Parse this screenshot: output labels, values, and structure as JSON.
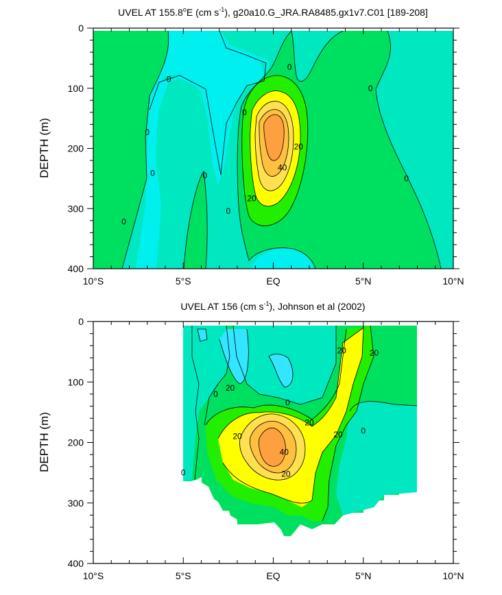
{
  "colors": {
    "fill_neg_strong": "#33e6ff",
    "fill_neg": "#00f0f0",
    "fill_zero": "#00e8c0",
    "fill_low": "#00e060",
    "fill_10": "#22ee00",
    "fill_20": "#ffff00",
    "fill_30": "#ffe050",
    "fill_40": "#ffc040",
    "fill_max": "#ffa040"
  },
  "chart_data": [
    {
      "type": "contour",
      "title_main": "UVEL AT 155.8",
      "title_deg": "o",
      "title_unit_open": "E (cm s",
      "title_exp": "-1",
      "title_rest": "), g20a10.G_JRA.RA8485.gx1v7.C01 [189-208]",
      "ylabel": "DEPTH (m)",
      "xlim": [
        -10,
        10
      ],
      "ylim": [
        400,
        0
      ],
      "x_ticks": [
        {
          "v": -10,
          "label": "10°S"
        },
        {
          "v": -5,
          "label": "5°S"
        },
        {
          "v": 0,
          "label": "EQ"
        },
        {
          "v": 5,
          "label": "5°N"
        },
        {
          "v": 10,
          "label": "10°N"
        }
      ],
      "y_ticks": [
        {
          "v": 0,
          "label": "0"
        },
        {
          "v": 100,
          "label": "100"
        },
        {
          "v": 200,
          "label": "200"
        },
        {
          "v": 300,
          "label": "300"
        },
        {
          "v": 400,
          "label": "400"
        }
      ],
      "contour_labels": [
        {
          "text": "0",
          "lat": -5.8,
          "depth": 85
        },
        {
          "text": "0",
          "lat": -7.0,
          "depth": 173
        },
        {
          "text": "0",
          "lat": -6.7,
          "depth": 241
        },
        {
          "text": "0",
          "lat": -8.3,
          "depth": 322
        },
        {
          "text": "0",
          "lat": -3.8,
          "depth": 245
        },
        {
          "text": "0",
          "lat": -2.5,
          "depth": 304
        },
        {
          "text": "0",
          "lat": -1.6,
          "depth": 140
        },
        {
          "text": "0",
          "lat": 0.9,
          "depth": 65
        },
        {
          "text": "0",
          "lat": 5.4,
          "depth": 100
        },
        {
          "text": "0",
          "lat": 7.4,
          "depth": 250
        },
        {
          "text": "20",
          "lat": 1.4,
          "depth": 197
        },
        {
          "text": "40",
          "lat": 0.5,
          "depth": 232
        },
        {
          "text": "20",
          "lat": -1.2,
          "depth": 283
        }
      ]
    },
    {
      "type": "contour",
      "title_main": "UVEL AT 156 (cm s",
      "title_exp": "-1",
      "title_rest": "), Johnson et al (2002)",
      "ylabel": "DEPTH (m)",
      "xlim": [
        -10,
        10
      ],
      "ylim": [
        400,
        0
      ],
      "x_ticks": [
        {
          "v": -10,
          "label": "10°S"
        },
        {
          "v": -5,
          "label": "5°S"
        },
        {
          "v": 0,
          "label": "EQ"
        },
        {
          "v": 5,
          "label": "5°N"
        },
        {
          "v": 10,
          "label": "10°N"
        }
      ],
      "y_ticks": [
        {
          "v": 0,
          "label": "0"
        },
        {
          "v": 100,
          "label": "100"
        },
        {
          "v": 200,
          "label": "200"
        },
        {
          "v": 300,
          "label": "300"
        },
        {
          "v": 400,
          "label": "400"
        }
      ],
      "contour_labels": [
        {
          "text": "0",
          "lat": -3.2,
          "depth": 120
        },
        {
          "text": "20",
          "lat": -2.4,
          "depth": 110
        },
        {
          "text": "0",
          "lat": 0.8,
          "depth": 134
        },
        {
          "text": "20",
          "lat": 3.8,
          "depth": 48
        },
        {
          "text": "20",
          "lat": 5.6,
          "depth": 52
        },
        {
          "text": "20",
          "lat": 2.0,
          "depth": 167
        },
        {
          "text": "20",
          "lat": -2.0,
          "depth": 190
        },
        {
          "text": "40",
          "lat": 0.6,
          "depth": 216
        },
        {
          "text": "20",
          "lat": 3.6,
          "depth": 187
        },
        {
          "text": "0",
          "lat": 5.0,
          "depth": 181
        },
        {
          "text": "20",
          "lat": 0.7,
          "depth": 252
        },
        {
          "text": "0",
          "lat": -5.0,
          "depth": 250
        }
      ]
    }
  ]
}
